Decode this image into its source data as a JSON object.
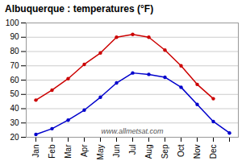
{
  "chart_data": {
    "type": "line",
    "title": "Albuquerque : temperatures (°F)",
    "categories": [
      "Jan",
      "Feb",
      "Mar",
      "Apr",
      "May",
      "Jun",
      "Jul",
      "Aug",
      "Sep",
      "Oct",
      "Nov",
      "Dec",
      null
    ],
    "series": [
      {
        "color": "#cc0000",
        "marker": "circle",
        "line_style": "solid",
        "values": [
          46,
          53,
          61,
          71,
          79,
          90,
          92,
          90,
          81,
          70,
          57,
          47,
          null
        ]
      },
      {
        "color": "#0000cc",
        "marker": "circle",
        "line_style": "solid",
        "values": [
          22,
          26,
          32,
          39,
          48,
          58,
          65,
          64,
          62,
          55,
          43,
          31,
          23
        ]
      }
    ],
    "ylim": [
      20,
      100
    ],
    "yticks": [
      20,
      30,
      40,
      50,
      60,
      70,
      80,
      90,
      100
    ],
    "grid": true,
    "annotations": [
      "www.allmetsat.com"
    ]
  }
}
